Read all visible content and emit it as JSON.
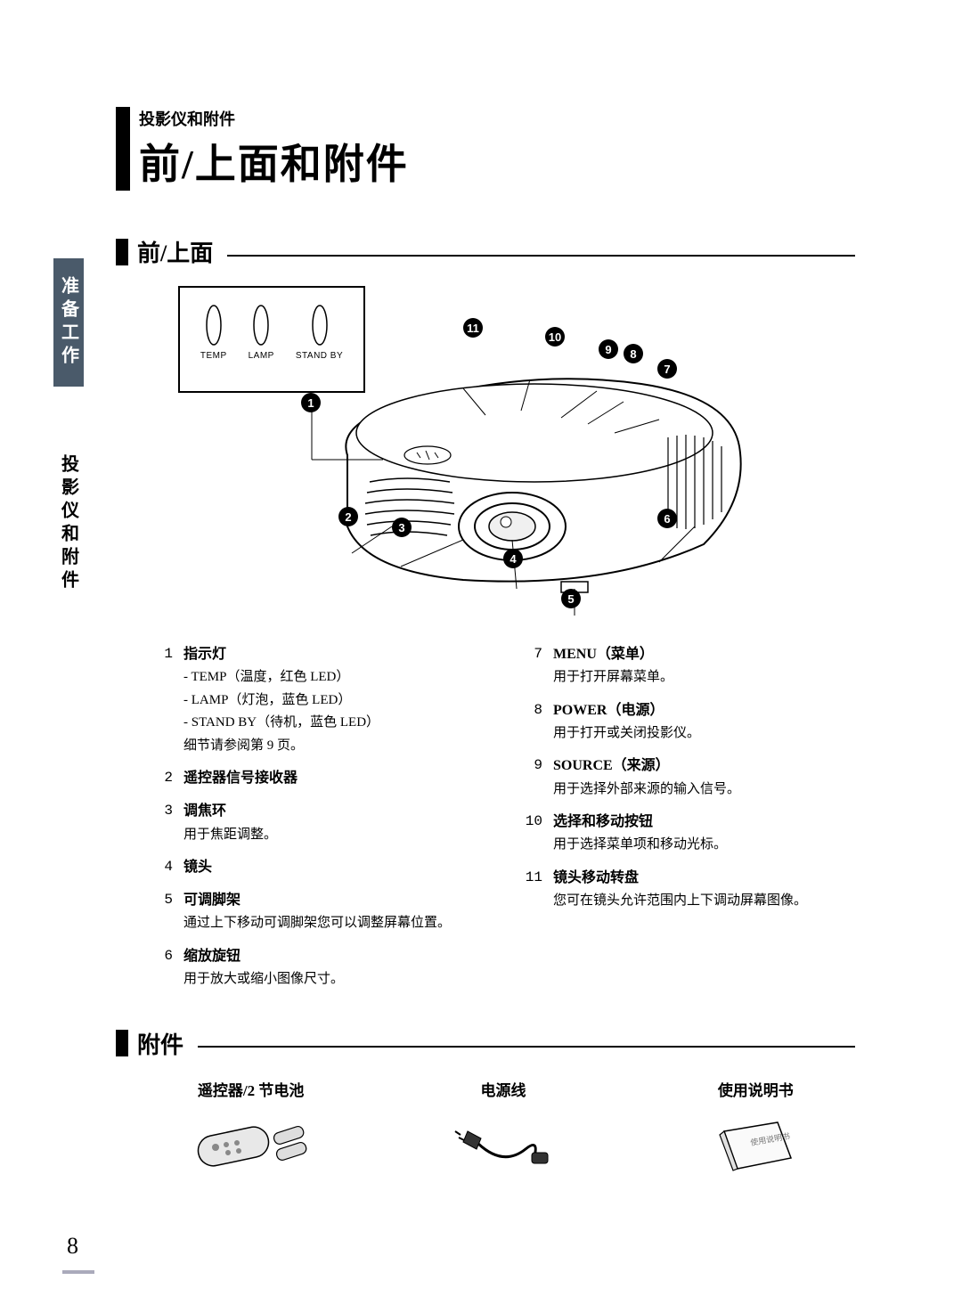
{
  "header": {
    "overline": "投影仪和附件",
    "title": "前/上面和附件"
  },
  "side_tabs": {
    "upper": "准备工作",
    "lower": "投影仪和附件"
  },
  "section1": {
    "heading": "前/上面",
    "leds": {
      "temp": "TEMP",
      "lamp": "LAMP",
      "standby": "STAND BY"
    },
    "callouts": [
      "1",
      "2",
      "3",
      "4",
      "5",
      "6",
      "7",
      "8",
      "9",
      "10",
      "11"
    ],
    "features_left": [
      {
        "n": "1",
        "title": "指示灯",
        "lines": [
          "- TEMP（温度，红色 LED）",
          "- LAMP（灯泡，蓝色 LED）",
          "- STAND BY（待机，蓝色 LED）",
          "细节请参阅第 9 页。"
        ]
      },
      {
        "n": "2",
        "title": "遥控器信号接收器",
        "lines": []
      },
      {
        "n": "3",
        "title": "调焦环",
        "lines": [
          "用于焦距调整。"
        ]
      },
      {
        "n": "4",
        "title": "镜头",
        "lines": []
      },
      {
        "n": "5",
        "title": "可调脚架",
        "lines": [
          "通过上下移动可调脚架您可以调整屏幕位置。"
        ]
      },
      {
        "n": "6",
        "title": "缩放旋钮",
        "lines": [
          "用于放大或缩小图像尺寸。"
        ]
      }
    ],
    "features_right": [
      {
        "n": "7",
        "title": "MENU（菜单）",
        "lines": [
          "用于打开屏幕菜单。"
        ]
      },
      {
        "n": "8",
        "title": "POWER（电源）",
        "lines": [
          "用于打开或关闭投影仪。"
        ]
      },
      {
        "n": "9",
        "title": "SOURCE（来源）",
        "lines": [
          "用于选择外部来源的输入信号。"
        ]
      },
      {
        "n": "10",
        "title": "选择和移动按钮",
        "lines": [
          "用于选择菜单项和移动光标。"
        ]
      },
      {
        "n": "11",
        "title": "镜头移动转盘",
        "lines": [
          "您可在镜头允许范围内上下调动屏幕图像。"
        ]
      }
    ]
  },
  "section2": {
    "heading": "附件",
    "items": [
      {
        "title": "遥控器/2 节电池"
      },
      {
        "title": "电源线"
      },
      {
        "title": "使用说明书"
      }
    ]
  },
  "page": "8",
  "style": {
    "accent_bar_color": "#000000",
    "side_tab_bg": "#4a5a6a",
    "font_title_pt": 46,
    "font_subhead_pt": 26,
    "font_body_pt": 16,
    "font_small_pt": 15
  }
}
